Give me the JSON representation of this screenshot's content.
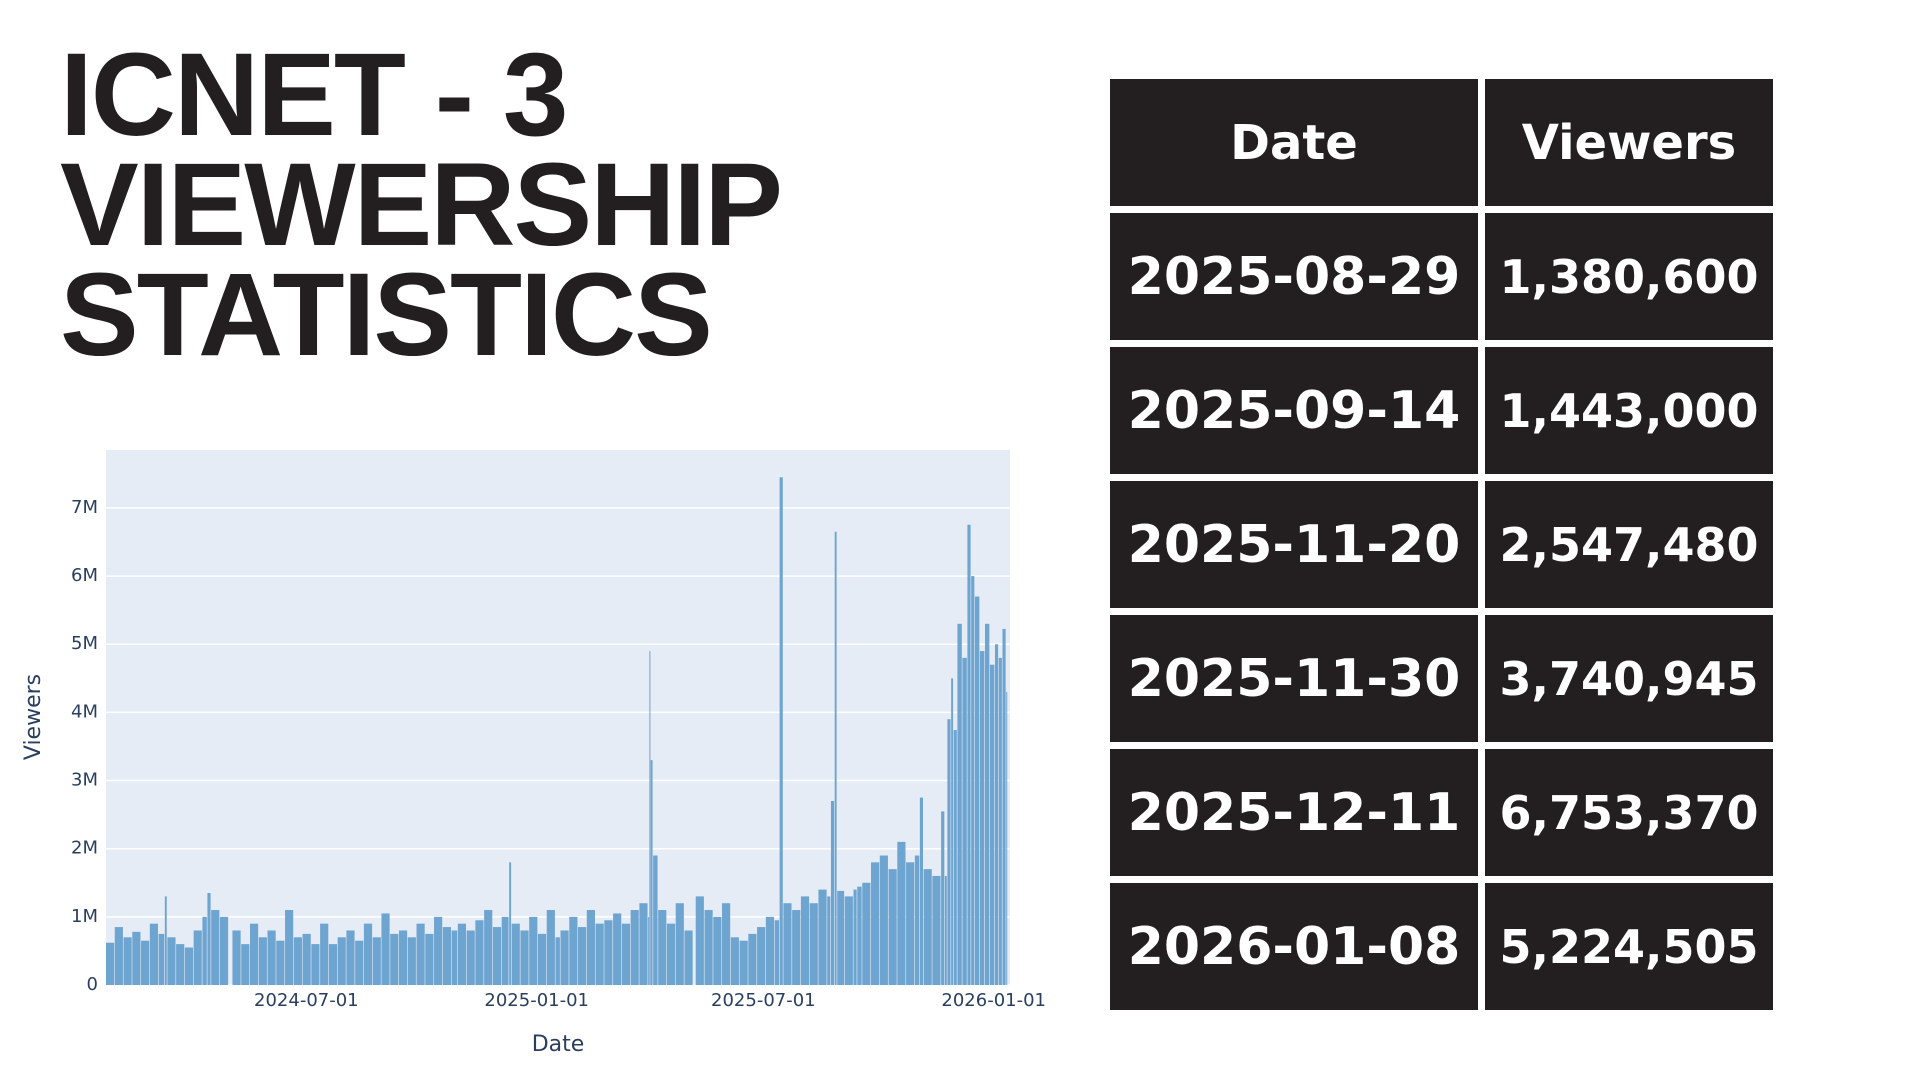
{
  "title_lines": [
    "ICNET - 3",
    "VIEWERSHIP",
    "STATISTICS"
  ],
  "chart_data": {
    "type": "bar",
    "xlabel": "Date",
    "ylabel": "Viewers",
    "color": "#6ea4d0",
    "grid": true,
    "xlim": [
      "2024-01-23",
      "2026-01-14"
    ],
    "xticks": [
      "2024-07-01",
      "2025-01-01",
      "2025-07-01",
      "2026-01-01"
    ],
    "ylim": [
      0,
      7850000
    ],
    "yticks": [
      0,
      {
        "value": 1000000,
        "label": "1M"
      },
      {
        "value": 2000000,
        "label": "2M"
      },
      {
        "value": 3000000,
        "label": "3M"
      },
      {
        "value": 4000000,
        "label": "4M"
      },
      {
        "value": 5000000,
        "label": "5M"
      },
      {
        "value": 6000000,
        "label": "6M"
      },
      {
        "value": 7000000,
        "label": "7M"
      }
    ],
    "x": [
      "2024-01-23",
      "2024-01-30",
      "2024-02-06",
      "2024-02-13",
      "2024-02-20",
      "2024-02-27",
      "2024-03-05",
      "2024-03-10",
      "2024-03-12",
      "2024-03-19",
      "2024-03-26",
      "2024-04-02",
      "2024-04-09",
      "2024-04-13",
      "2024-04-16",
      "2024-04-23",
      "2024-05-03",
      "2024-05-10",
      "2024-05-17",
      "2024-05-24",
      "2024-05-31",
      "2024-06-07",
      "2024-06-14",
      "2024-06-21",
      "2024-06-28",
      "2024-07-05",
      "2024-07-12",
      "2024-07-19",
      "2024-07-26",
      "2024-08-02",
      "2024-08-09",
      "2024-08-16",
      "2024-08-23",
      "2024-08-30",
      "2024-09-06",
      "2024-09-13",
      "2024-09-20",
      "2024-09-27",
      "2024-10-04",
      "2024-10-11",
      "2024-10-18",
      "2024-10-25",
      "2024-10-30",
      "2024-11-06",
      "2024-11-13",
      "2024-11-20",
      "2024-11-27",
      "2024-12-04",
      "2024-12-10",
      "2024-12-12",
      "2024-12-19",
      "2024-12-26",
      "2025-01-02",
      "2025-01-09",
      "2025-01-16",
      "2025-01-20",
      "2025-01-27",
      "2025-02-03",
      "2025-02-10",
      "2025-02-17",
      "2025-02-24",
      "2025-03-03",
      "2025-03-10",
      "2025-03-17",
      "2025-03-24",
      "2025-03-31",
      "2025-04-01",
      "2025-04-02",
      "2025-04-04",
      "2025-04-08",
      "2025-04-15",
      "2025-04-22",
      "2025-04-29",
      "2025-05-08",
      "2025-05-15",
      "2025-05-22",
      "2025-05-29",
      "2025-06-05",
      "2025-06-12",
      "2025-06-19",
      "2025-06-26",
      "2025-07-03",
      "2025-07-10",
      "2025-07-14",
      "2025-07-17",
      "2025-07-24",
      "2025-07-31",
      "2025-08-07",
      "2025-08-14",
      "2025-08-21",
      "2025-08-24",
      "2025-08-27",
      "2025-08-29",
      "2025-09-04",
      "2025-09-11",
      "2025-09-14",
      "2025-09-18",
      "2025-09-25",
      "2025-10-02",
      "2025-10-09",
      "2025-10-16",
      "2025-10-23",
      "2025-10-30",
      "2025-11-03",
      "2025-11-06",
      "2025-11-13",
      "2025-11-20",
      "2025-11-23",
      "2025-11-25",
      "2025-11-28",
      "2025-11-30",
      "2025-12-03",
      "2025-12-07",
      "2025-12-11",
      "2025-12-14",
      "2025-12-17",
      "2025-12-21",
      "2025-12-25",
      "2025-12-29",
      "2026-01-02",
      "2026-01-05",
      "2026-01-08",
      "2026-01-11"
    ],
    "values": [
      620000,
      850000,
      700000,
      780000,
      650000,
      900000,
      750000,
      1300000,
      700000,
      600000,
      550000,
      800000,
      1000000,
      1350000,
      1100000,
      1000000,
      800000,
      600000,
      900000,
      700000,
      800000,
      650000,
      1100000,
      700000,
      750000,
      600000,
      900000,
      600000,
      700000,
      800000,
      650000,
      900000,
      700000,
      1050000,
      750000,
      800000,
      700000,
      900000,
      750000,
      1000000,
      850000,
      800000,
      900000,
      800000,
      950000,
      1100000,
      850000,
      1000000,
      1800000,
      900000,
      800000,
      1000000,
      750000,
      1100000,
      700000,
      800000,
      1000000,
      850000,
      1100000,
      900000,
      950000,
      1050000,
      900000,
      1100000,
      1200000,
      1000000,
      4900000,
      3300000,
      1900000,
      1100000,
      900000,
      1200000,
      800000,
      1300000,
      1100000,
      1000000,
      1200000,
      700000,
      650000,
      750000,
      850000,
      1000000,
      950000,
      7450000,
      1200000,
      1100000,
      1300000,
      1200000,
      1400000,
      1300000,
      2700000,
      6650000,
      1380600,
      1300000,
      1400000,
      1443000,
      1500000,
      1800000,
      1900000,
      1700000,
      2100000,
      1800000,
      1900000,
      2750000,
      1700000,
      1600000,
      2547480,
      1600000,
      3900000,
      4500000,
      3740945,
      5300000,
      4800000,
      6753370,
      6000000,
      5700000,
      4900000,
      5300000,
      4700000,
      5000000,
      4800000,
      5224505,
      4300000
    ]
  },
  "table": {
    "headers": [
      "Date",
      "Viewers"
    ],
    "rows": [
      [
        "2025-08-29",
        "1,380,600"
      ],
      [
        "2025-09-14",
        "1,443,000"
      ],
      [
        "2025-11-20",
        "2,547,480"
      ],
      [
        "2025-11-30",
        "3,740,945"
      ],
      [
        "2025-12-11",
        "6,753,370"
      ],
      [
        "2026-01-08",
        "5,224,505"
      ]
    ]
  }
}
